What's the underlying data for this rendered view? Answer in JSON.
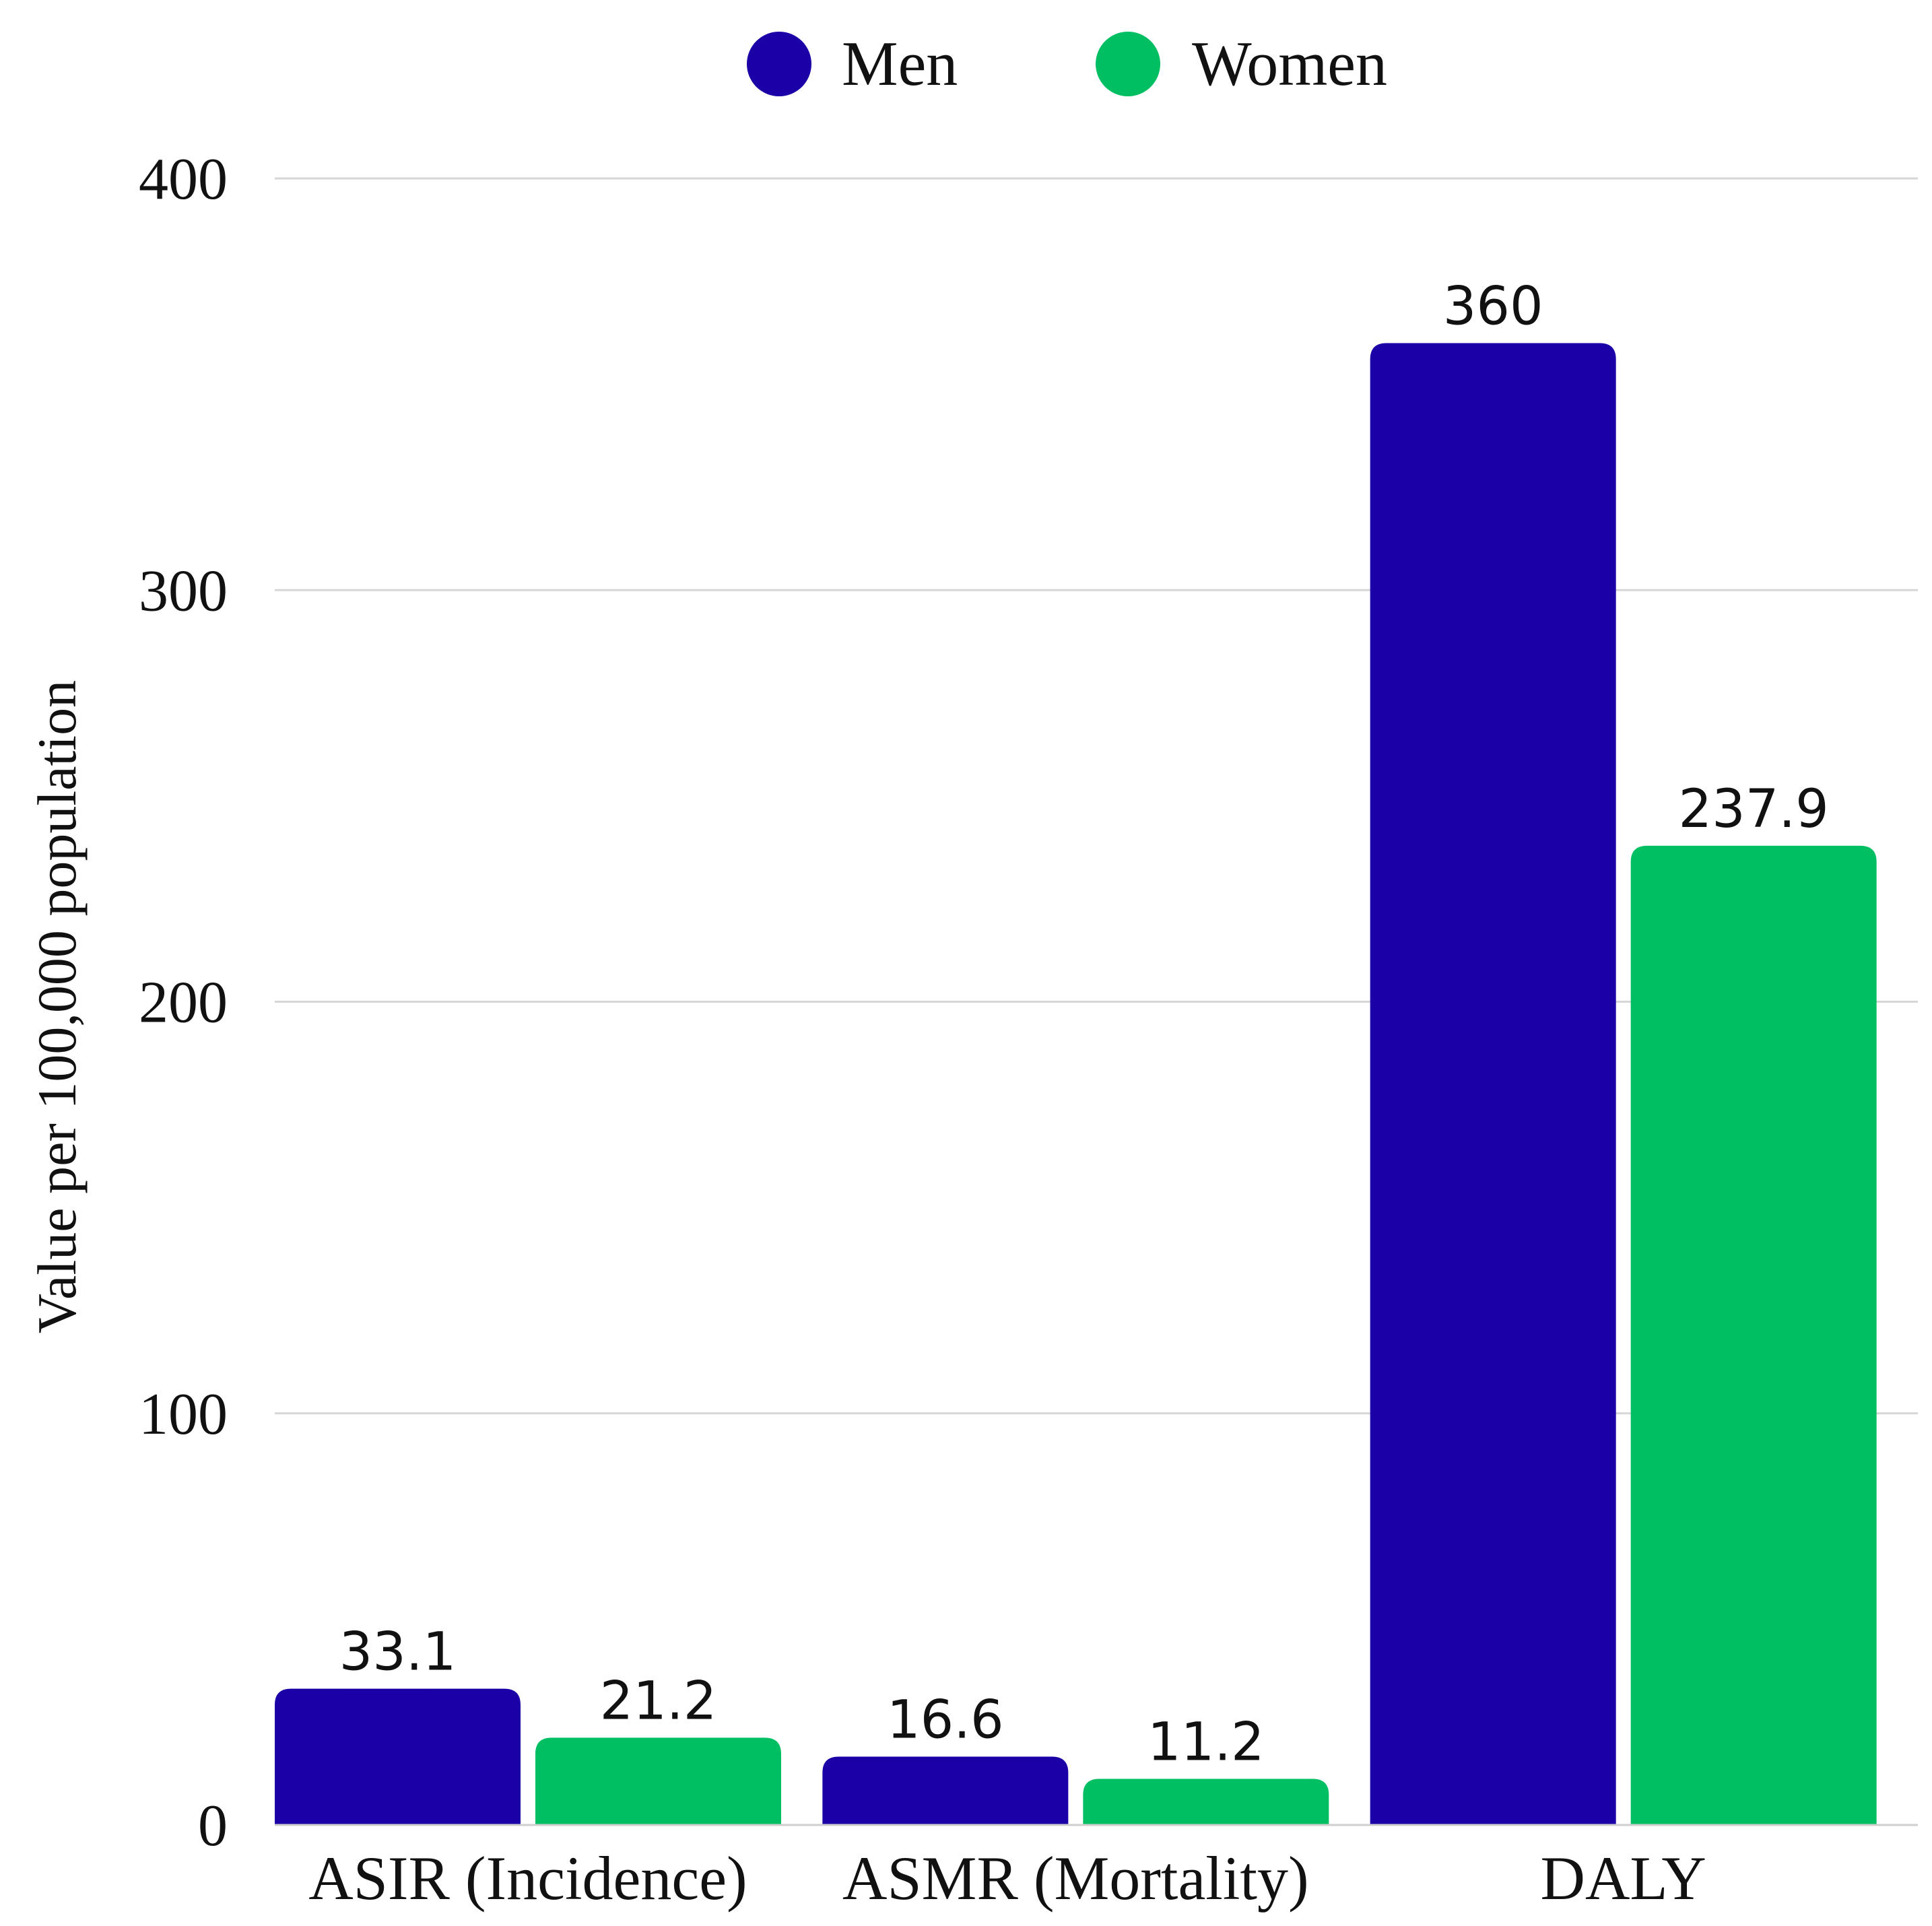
{
  "chart_data": {
    "type": "bar",
    "title": "",
    "xlabel": "",
    "ylabel": "Value per 100,000 population",
    "ylim": [
      0,
      400
    ],
    "yticks": [
      "0",
      "100",
      "200",
      "300",
      "400"
    ],
    "grid": true,
    "legend_position": "top-center",
    "categories": [
      "ASIR (Incidence)",
      "ASMR (Mortality)",
      "DALY"
    ],
    "series": [
      {
        "name": "Men",
        "color": "#1a00a6",
        "values": [
          33.1,
          16.6,
          360
        ],
        "labels": [
          "33.1",
          "16.6",
          "360"
        ]
      },
      {
        "name": "Women",
        "color": "#00bf63",
        "values": [
          21.2,
          11.2,
          237.9
        ],
        "labels": [
          "21.2",
          "11.2",
          "237.9"
        ]
      }
    ]
  }
}
